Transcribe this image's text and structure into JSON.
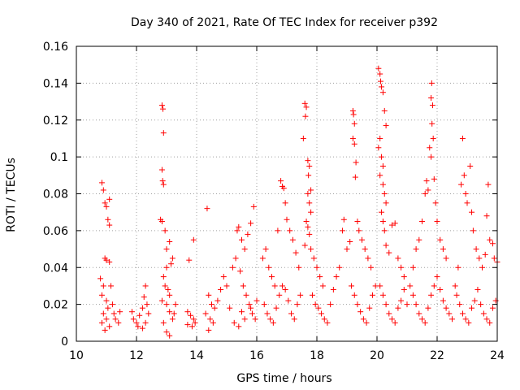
{
  "chart_data": {
    "type": "scatter",
    "title": "Day 340 of 2021, Rate Of TEC Index for receiver p392",
    "xlabel": "GPS time / hours",
    "ylabel": "ROTI / TECUs",
    "xlim": [
      10,
      24
    ],
    "ylim": [
      0,
      0.16
    ],
    "xticks": [
      10,
      12,
      14,
      16,
      18,
      20,
      22,
      24
    ],
    "xtick_labels": [
      "10",
      "12",
      "14",
      "16",
      "18",
      "20",
      "22",
      "24"
    ],
    "yticks": [
      0,
      0.02,
      0.04,
      0.06,
      0.08,
      0.1,
      0.12,
      0.14,
      0.16
    ],
    "ytick_labels": [
      "0",
      "0.02",
      "0.04",
      "0.06",
      "0.08",
      "0.1",
      "0.12",
      "0.14",
      "0.16"
    ],
    "grid": true,
    "marker": "plus",
    "color": "#ff0000",
    "series": [
      {
        "name": "ROTI",
        "points": [
          [
            10.85,
            0.086
          ],
          [
            10.9,
            0.082
          ],
          [
            10.95,
            0.075
          ],
          [
            11.0,
            0.073
          ],
          [
            11.1,
            0.077
          ],
          [
            11.05,
            0.066
          ],
          [
            11.1,
            0.063
          ],
          [
            10.95,
            0.045
          ],
          [
            11.0,
            0.044
          ],
          [
            11.1,
            0.043
          ],
          [
            11.15,
            0.03
          ],
          [
            10.8,
            0.034
          ],
          [
            10.9,
            0.03
          ],
          [
            10.85,
            0.025
          ],
          [
            11.0,
            0.022
          ],
          [
            11.05,
            0.018
          ],
          [
            10.9,
            0.015
          ],
          [
            11.0,
            0.012
          ],
          [
            10.85,
            0.01
          ],
          [
            11.1,
            0.008
          ],
          [
            10.95,
            0.006
          ],
          [
            11.2,
            0.02
          ],
          [
            11.25,
            0.015
          ],
          [
            11.3,
            0.012
          ],
          [
            11.4,
            0.01
          ],
          [
            11.45,
            0.016
          ],
          [
            11.85,
            0.016
          ],
          [
            11.9,
            0.012
          ],
          [
            12.0,
            0.01
          ],
          [
            12.05,
            0.008
          ],
          [
            12.1,
            0.014
          ],
          [
            12.2,
            0.018
          ],
          [
            12.25,
            0.024
          ],
          [
            12.3,
            0.03
          ],
          [
            12.35,
            0.02
          ],
          [
            12.4,
            0.015
          ],
          [
            12.3,
            0.01
          ],
          [
            12.2,
            0.007
          ],
          [
            12.85,
            0.128
          ],
          [
            12.88,
            0.126
          ],
          [
            12.9,
            0.113
          ],
          [
            12.85,
            0.093
          ],
          [
            12.87,
            0.087
          ],
          [
            12.9,
            0.085
          ],
          [
            12.8,
            0.066
          ],
          [
            12.85,
            0.065
          ],
          [
            12.95,
            0.06
          ],
          [
            13.0,
            0.05
          ],
          [
            13.1,
            0.054
          ],
          [
            13.2,
            0.045
          ],
          [
            13.15,
            0.042
          ],
          [
            13.0,
            0.04
          ],
          [
            12.9,
            0.035
          ],
          [
            12.95,
            0.03
          ],
          [
            13.05,
            0.028
          ],
          [
            13.1,
            0.025
          ],
          [
            12.85,
            0.022
          ],
          [
            13.0,
            0.02
          ],
          [
            13.1,
            0.016
          ],
          [
            13.2,
            0.012
          ],
          [
            12.9,
            0.01
          ],
          [
            13.0,
            0.005
          ],
          [
            13.1,
            0.003
          ],
          [
            13.3,
            0.02
          ],
          [
            13.25,
            0.015
          ],
          [
            13.75,
            0.044
          ],
          [
            13.9,
            0.055
          ],
          [
            13.7,
            0.016
          ],
          [
            13.8,
            0.014
          ],
          [
            13.9,
            0.012
          ],
          [
            13.85,
            0.008
          ],
          [
            13.95,
            0.01
          ],
          [
            13.7,
            0.009
          ],
          [
            14.35,
            0.072
          ],
          [
            14.4,
            0.025
          ],
          [
            14.5,
            0.02
          ],
          [
            14.6,
            0.018
          ],
          [
            14.3,
            0.015
          ],
          [
            14.45,
            0.012
          ],
          [
            14.55,
            0.01
          ],
          [
            14.4,
            0.006
          ],
          [
            14.7,
            0.022
          ],
          [
            14.8,
            0.028
          ],
          [
            14.9,
            0.035
          ],
          [
            15.0,
            0.03
          ],
          [
            15.2,
            0.04
          ],
          [
            15.35,
            0.06
          ],
          [
            15.4,
            0.062
          ],
          [
            15.5,
            0.055
          ],
          [
            15.6,
            0.05
          ],
          [
            15.7,
            0.058
          ],
          [
            15.8,
            0.064
          ],
          [
            15.9,
            0.073
          ],
          [
            15.3,
            0.045
          ],
          [
            15.45,
            0.038
          ],
          [
            15.55,
            0.03
          ],
          [
            15.65,
            0.025
          ],
          [
            15.75,
            0.02
          ],
          [
            15.85,
            0.015
          ],
          [
            15.95,
            0.012
          ],
          [
            15.25,
            0.01
          ],
          [
            15.4,
            0.008
          ],
          [
            15.6,
            0.012
          ],
          [
            15.8,
            0.018
          ],
          [
            16.0,
            0.022
          ],
          [
            15.1,
            0.018
          ],
          [
            15.5,
            0.016
          ],
          [
            16.2,
            0.045
          ],
          [
            16.3,
            0.05
          ],
          [
            16.4,
            0.04
          ],
          [
            16.5,
            0.035
          ],
          [
            16.6,
            0.03
          ],
          [
            16.7,
            0.06
          ],
          [
            16.8,
            0.087
          ],
          [
            16.85,
            0.084
          ],
          [
            16.9,
            0.083
          ],
          [
            16.95,
            0.075
          ],
          [
            17.0,
            0.066
          ],
          [
            17.1,
            0.06
          ],
          [
            17.2,
            0.055
          ],
          [
            17.3,
            0.048
          ],
          [
            17.4,
            0.04
          ],
          [
            16.25,
            0.02
          ],
          [
            16.35,
            0.015
          ],
          [
            16.45,
            0.012
          ],
          [
            16.55,
            0.01
          ],
          [
            16.65,
            0.018
          ],
          [
            16.75,
            0.025
          ],
          [
            16.85,
            0.03
          ],
          [
            16.95,
            0.028
          ],
          [
            17.05,
            0.022
          ],
          [
            17.15,
            0.015
          ],
          [
            17.25,
            0.012
          ],
          [
            17.35,
            0.02
          ],
          [
            17.45,
            0.025
          ],
          [
            17.55,
            0.11
          ],
          [
            17.6,
            0.129
          ],
          [
            17.65,
            0.127
          ],
          [
            17.62,
            0.122
          ],
          [
            17.7,
            0.098
          ],
          [
            17.75,
            0.095
          ],
          [
            17.72,
            0.09
          ],
          [
            17.8,
            0.082
          ],
          [
            17.7,
            0.08
          ],
          [
            17.75,
            0.075
          ],
          [
            17.8,
            0.07
          ],
          [
            17.65,
            0.065
          ],
          [
            17.7,
            0.062
          ],
          [
            17.75,
            0.058
          ],
          [
            17.6,
            0.052
          ],
          [
            17.8,
            0.05
          ],
          [
            17.9,
            0.045
          ],
          [
            18.0,
            0.04
          ],
          [
            18.1,
            0.035
          ],
          [
            18.2,
            0.03
          ],
          [
            17.85,
            0.025
          ],
          [
            17.95,
            0.02
          ],
          [
            18.05,
            0.018
          ],
          [
            18.15,
            0.015
          ],
          [
            18.25,
            0.012
          ],
          [
            18.35,
            0.01
          ],
          [
            18.45,
            0.02
          ],
          [
            18.55,
            0.028
          ],
          [
            18.65,
            0.035
          ],
          [
            18.75,
            0.04
          ],
          [
            18.85,
            0.06
          ],
          [
            18.9,
            0.066
          ],
          [
            19.0,
            0.05
          ],
          [
            19.1,
            0.054
          ],
          [
            19.2,
            0.125
          ],
          [
            19.22,
            0.123
          ],
          [
            19.25,
            0.118
          ],
          [
            19.2,
            0.11
          ],
          [
            19.25,
            0.107
          ],
          [
            19.3,
            0.097
          ],
          [
            19.28,
            0.089
          ],
          [
            19.35,
            0.065
          ],
          [
            19.4,
            0.06
          ],
          [
            19.5,
            0.055
          ],
          [
            19.6,
            0.05
          ],
          [
            19.7,
            0.045
          ],
          [
            19.8,
            0.04
          ],
          [
            19.15,
            0.03
          ],
          [
            19.25,
            0.025
          ],
          [
            19.35,
            0.02
          ],
          [
            19.45,
            0.016
          ],
          [
            19.55,
            0.012
          ],
          [
            19.65,
            0.01
          ],
          [
            19.75,
            0.018
          ],
          [
            19.85,
            0.025
          ],
          [
            19.95,
            0.03
          ],
          [
            20.05,
            0.148
          ],
          [
            20.1,
            0.145
          ],
          [
            20.12,
            0.141
          ],
          [
            20.15,
            0.138
          ],
          [
            20.2,
            0.135
          ],
          [
            20.25,
            0.125
          ],
          [
            20.3,
            0.117
          ],
          [
            20.1,
            0.11
          ],
          [
            20.05,
            0.105
          ],
          [
            20.15,
            0.1
          ],
          [
            20.2,
            0.095
          ],
          [
            20.1,
            0.09
          ],
          [
            20.2,
            0.085
          ],
          [
            20.25,
            0.08
          ],
          [
            20.3,
            0.075
          ],
          [
            20.15,
            0.07
          ],
          [
            20.2,
            0.065
          ],
          [
            20.25,
            0.06
          ],
          [
            20.3,
            0.052
          ],
          [
            20.4,
            0.048
          ],
          [
            20.5,
            0.063
          ],
          [
            20.6,
            0.064
          ],
          [
            20.7,
            0.045
          ],
          [
            20.8,
            0.04
          ],
          [
            20.9,
            0.035
          ],
          [
            20.1,
            0.03
          ],
          [
            20.2,
            0.025
          ],
          [
            20.3,
            0.02
          ],
          [
            20.4,
            0.015
          ],
          [
            20.5,
            0.012
          ],
          [
            20.6,
            0.01
          ],
          [
            20.7,
            0.018
          ],
          [
            20.8,
            0.022
          ],
          [
            20.9,
            0.028
          ],
          [
            21.0,
            0.02
          ],
          [
            21.1,
            0.03
          ],
          [
            21.2,
            0.04
          ],
          [
            21.3,
            0.05
          ],
          [
            21.4,
            0.055
          ],
          [
            21.5,
            0.065
          ],
          [
            21.6,
            0.08
          ],
          [
            21.65,
            0.087
          ],
          [
            21.7,
            0.082
          ],
          [
            21.75,
            0.105
          ],
          [
            21.8,
            0.132
          ],
          [
            21.82,
            0.14
          ],
          [
            21.85,
            0.128
          ],
          [
            21.83,
            0.118
          ],
          [
            21.87,
            0.11
          ],
          [
            21.8,
            0.1
          ],
          [
            21.9,
            0.088
          ],
          [
            21.95,
            0.075
          ],
          [
            22.0,
            0.065
          ],
          [
            22.1,
            0.055
          ],
          [
            22.2,
            0.05
          ],
          [
            22.3,
            0.045
          ],
          [
            21.2,
            0.025
          ],
          [
            21.3,
            0.02
          ],
          [
            21.4,
            0.015
          ],
          [
            21.5,
            0.012
          ],
          [
            21.6,
            0.01
          ],
          [
            21.7,
            0.018
          ],
          [
            21.8,
            0.025
          ],
          [
            21.9,
            0.03
          ],
          [
            22.0,
            0.035
          ],
          [
            22.1,
            0.028
          ],
          [
            22.2,
            0.022
          ],
          [
            22.3,
            0.018
          ],
          [
            22.4,
            0.015
          ],
          [
            22.5,
            0.012
          ],
          [
            22.6,
            0.03
          ],
          [
            22.7,
            0.04
          ],
          [
            22.8,
            0.085
          ],
          [
            22.85,
            0.11
          ],
          [
            22.9,
            0.09
          ],
          [
            22.95,
            0.08
          ],
          [
            23.0,
            0.075
          ],
          [
            23.1,
            0.095
          ],
          [
            23.15,
            0.07
          ],
          [
            23.2,
            0.06
          ],
          [
            23.3,
            0.05
          ],
          [
            23.4,
            0.045
          ],
          [
            23.5,
            0.04
          ],
          [
            23.6,
            0.047
          ],
          [
            23.7,
            0.085
          ],
          [
            23.65,
            0.068
          ],
          [
            23.75,
            0.055
          ],
          [
            23.85,
            0.053
          ],
          [
            23.9,
            0.045
          ],
          [
            24.0,
            0.043
          ],
          [
            22.65,
            0.025
          ],
          [
            22.75,
            0.02
          ],
          [
            22.85,
            0.015
          ],
          [
            22.95,
            0.012
          ],
          [
            23.05,
            0.01
          ],
          [
            23.15,
            0.018
          ],
          [
            23.25,
            0.022
          ],
          [
            23.35,
            0.028
          ],
          [
            23.45,
            0.02
          ],
          [
            23.55,
            0.015
          ],
          [
            23.65,
            0.012
          ],
          [
            23.75,
            0.01
          ],
          [
            23.85,
            0.018
          ],
          [
            23.95,
            0.022
          ]
        ]
      }
    ]
  }
}
